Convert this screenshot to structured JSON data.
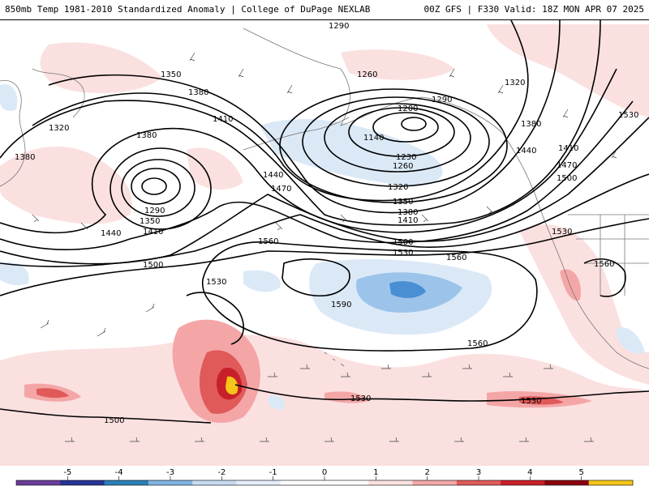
{
  "header": {
    "left": "850mb Temp 1981-2010 Standardized Anomaly | College of DuPage NEXLAB",
    "right": "00Z GFS | F330 Valid: 18Z MON APR 07 2025"
  },
  "contour_labels": [
    {
      "id": "h1290-top",
      "text": "1290"
    },
    {
      "id": "h1350-nw",
      "text": "1350"
    },
    {
      "id": "h1380-nw",
      "text": "1380"
    },
    {
      "id": "h1320-w",
      "text": "1320"
    },
    {
      "id": "h1380-w",
      "text": "1380"
    },
    {
      "id": "h1380-low1",
      "text": "1380"
    },
    {
      "id": "h1410-n",
      "text": "1410"
    },
    {
      "id": "h1260-gulf",
      "text": "1260"
    },
    {
      "id": "h1200",
      "text": "1200"
    },
    {
      "id": "h1140",
      "text": "1140"
    },
    {
      "id": "h1230",
      "text": "1230"
    },
    {
      "id": "h1260-s",
      "text": "1260"
    },
    {
      "id": "h1290-e",
      "text": "1290"
    },
    {
      "id": "h1320-ne",
      "text": "1320"
    },
    {
      "id": "h1380-ne",
      "text": "1380"
    },
    {
      "id": "h1440-e",
      "text": "1440"
    },
    {
      "id": "h1410-ne",
      "text": "1410"
    },
    {
      "id": "h1530-ne",
      "text": "1530"
    },
    {
      "id": "h1470-e",
      "text": "1470"
    },
    {
      "id": "h1500-e",
      "text": "1500"
    },
    {
      "id": "h1440-c",
      "text": "1440"
    },
    {
      "id": "h1470-c",
      "text": "1470"
    },
    {
      "id": "h1320-c",
      "text": "1320"
    },
    {
      "id": "h1350-c",
      "text": "1350"
    },
    {
      "id": "h1380-c",
      "text": "1380"
    },
    {
      "id": "h1410-c",
      "text": "1410"
    },
    {
      "id": "h1500-c",
      "text": "1500"
    },
    {
      "id": "h1530-c",
      "text": "1530"
    },
    {
      "id": "h1290-low1",
      "text": "1290"
    },
    {
      "id": "h1350-low1",
      "text": "1350"
    },
    {
      "id": "h1410-low1",
      "text": "1410"
    },
    {
      "id": "h1440-w",
      "text": "1440"
    },
    {
      "id": "h1500-w",
      "text": "1500"
    },
    {
      "id": "h1560-c",
      "text": "1560"
    },
    {
      "id": "h1530-sw",
      "text": "1530"
    },
    {
      "id": "h1560-ce",
      "text": "1560"
    },
    {
      "id": "h1590",
      "text": "1590"
    },
    {
      "id": "h1530-se",
      "text": "1530"
    },
    {
      "id": "h1560-ca",
      "text": "1560"
    },
    {
      "id": "h1560-s",
      "text": "1560"
    },
    {
      "id": "h1530-s",
      "text": "1530"
    },
    {
      "id": "h1530-se2",
      "text": "1530"
    },
    {
      "id": "h1500-sw",
      "text": "1500"
    }
  ],
  "legend": {
    "ticks": [
      "-5",
      "-4",
      "-3",
      "-2",
      "-1",
      "0",
      "1",
      "2",
      "3",
      "4",
      "5"
    ],
    "range": [
      -6,
      6
    ],
    "colors": [
      "#6a3d9a",
      "#253494",
      "#2c7fb8",
      "#7fb3e0",
      "#c6dbef",
      "#e3eef8",
      "#ffffff",
      "#ffffff",
      "#fbe0e0",
      "#f4a6a6",
      "#e05a5a",
      "#c8202a",
      "#8b0010",
      "#f5c518"
    ]
  },
  "colors": {
    "cold_light": "#dbe9f7",
    "cold_mid": "#9cc4ea",
    "cold_strong": "#4a8fd4",
    "warm_light": "#fbe0e0",
    "warm_mid": "#f4a6a6",
    "warm_strong": "#e05a5a",
    "warm_extreme": "#c8202a",
    "warm_max": "#8b0010",
    "yellow": "#f5c518"
  }
}
